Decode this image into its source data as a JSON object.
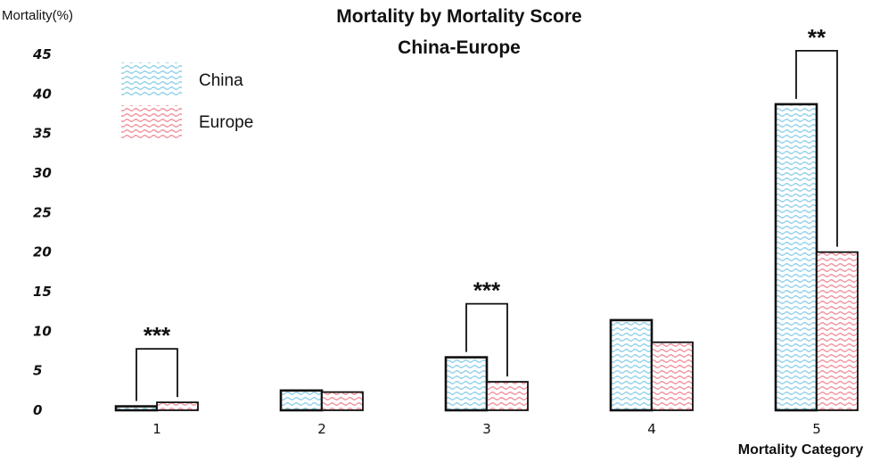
{
  "chart_data": {
    "type": "bar",
    "title": "Mortality by Mortality Score",
    "subtitle": "China-Europe",
    "ylabel": "Mortality(%)",
    "xlabel": "Mortality Category",
    "ylim": [
      0,
      45
    ],
    "yticks": [
      0,
      5,
      10,
      15,
      20,
      25,
      30,
      35,
      40,
      45
    ],
    "categories": [
      "1",
      "2",
      "3",
      "4",
      "5"
    ],
    "series": [
      {
        "name": "China",
        "color": "#8fd0ea",
        "values": [
          0.5,
          2.5,
          6.7,
          11.4,
          38.7
        ]
      },
      {
        "name": "Europe",
        "color": "#f0919b",
        "values": [
          1.0,
          2.3,
          3.6,
          8.6,
          20.0
        ]
      }
    ],
    "legend_position": "top-left",
    "significance": [
      {
        "category": "1",
        "label": "***"
      },
      {
        "category": "3",
        "label": "***"
      },
      {
        "category": "5",
        "label": "**"
      }
    ]
  }
}
